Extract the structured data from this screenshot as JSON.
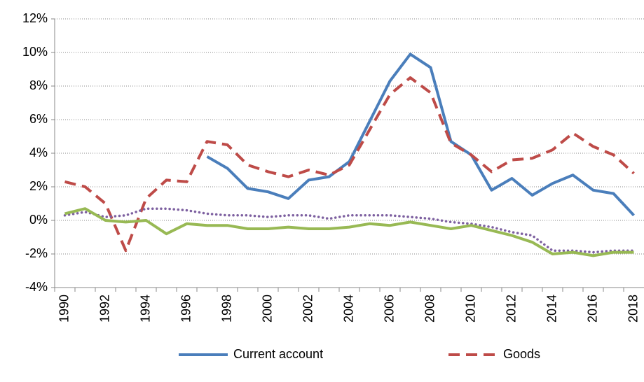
{
  "chart_data": {
    "type": "line",
    "categories": [
      "1990",
      null,
      "1992",
      null,
      "1994",
      null,
      "1996",
      null,
      "1998",
      null,
      "2000",
      null,
      "2002",
      null,
      "2004",
      null,
      "2006",
      null,
      "2008",
      null,
      "2010",
      null,
      "2012",
      null,
      "2014",
      null,
      "2016",
      null,
      "2018"
    ],
    "series": [
      {
        "name": "Current account",
        "color": "#4a7ebb",
        "style": "solid",
        "values": [
          null,
          null,
          null,
          null,
          null,
          null,
          null,
          3.8,
          3.1,
          1.9,
          1.7,
          1.3,
          2.4,
          2.6,
          3.5,
          5.9,
          8.3,
          9.9,
          9.1,
          4.7,
          3.9,
          1.8,
          2.5,
          1.5,
          2.2,
          2.7,
          1.8,
          1.6,
          0.3
        ]
      },
      {
        "name": "Goods",
        "color": "#be4b48",
        "style": "dashed",
        "values": [
          2.3,
          2.0,
          1.0,
          -1.8,
          1.3,
          2.4,
          2.3,
          4.7,
          4.5,
          3.3,
          2.9,
          2.6,
          3.0,
          2.7,
          3.3,
          5.4,
          7.5,
          8.5,
          7.6,
          4.6,
          3.9,
          2.9,
          3.6,
          3.7,
          4.2,
          5.2,
          4.4,
          3.9,
          2.8
        ]
      },
      {
        "color": "#7d60a0",
        "style": "dotted",
        "values": [
          0.3,
          0.5,
          0.2,
          0.3,
          0.7,
          0.7,
          0.6,
          0.4,
          0.3,
          0.3,
          0.2,
          0.3,
          0.3,
          0.1,
          0.3,
          0.3,
          0.3,
          0.2,
          0.1,
          -0.1,
          -0.2,
          -0.4,
          -0.7,
          -0.9,
          -1.8,
          -1.8,
          -1.9,
          -1.8,
          -1.8
        ]
      },
      {
        "color": "#98b954",
        "style": "solid",
        "values": [
          0.4,
          0.7,
          0.0,
          -0.1,
          0.0,
          -0.8,
          -0.2,
          -0.3,
          -0.3,
          -0.5,
          -0.5,
          -0.4,
          -0.5,
          -0.5,
          -0.4,
          -0.2,
          -0.3,
          -0.1,
          -0.3,
          -0.5,
          -0.3,
          -0.6,
          -0.9,
          -1.3,
          -2.0,
          -1.9,
          -2.1,
          -1.9,
          -1.9
        ]
      }
    ],
    "ylim": [
      -4,
      12
    ],
    "yticks": [
      {
        "value": -4,
        "label": "-4%"
      },
      {
        "value": -2,
        "label": "-2%"
      },
      {
        "value": 0,
        "label": "0%"
      },
      {
        "value": 2,
        "label": "2%"
      },
      {
        "value": 4,
        "label": "4%"
      },
      {
        "value": 6,
        "label": "6%"
      },
      {
        "value": 8,
        "label": "8%"
      },
      {
        "value": 10,
        "label": "10%"
      },
      {
        "value": 12,
        "label": "12%"
      }
    ],
    "grid": true,
    "legend": "bottom"
  }
}
